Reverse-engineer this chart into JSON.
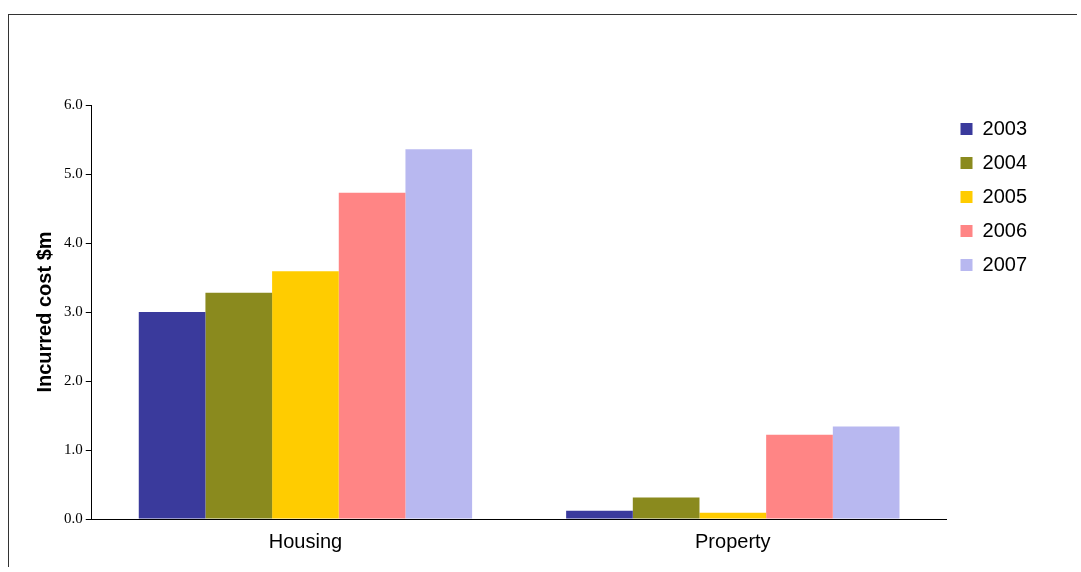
{
  "chart_data": {
    "type": "bar",
    "ylabel": "Incurred cost $m",
    "categories": [
      "Housing",
      "Property"
    ],
    "series": [
      {
        "name": "2003",
        "color": "#3a3a9c",
        "values": [
          3.0,
          0.12
        ]
      },
      {
        "name": "2004",
        "color": "#8a8a1e",
        "values": [
          3.28,
          0.31
        ]
      },
      {
        "name": "2005",
        "color": "#ffcc00",
        "values": [
          3.59,
          0.09
        ]
      },
      {
        "name": "2006",
        "color": "#ff8585",
        "values": [
          4.73,
          1.22
        ]
      },
      {
        "name": "2007",
        "color": "#b8b8f0",
        "values": [
          5.36,
          1.34
        ]
      }
    ],
    "ylim": [
      0,
      6
    ],
    "yticks": [
      {
        "value": 0,
        "label": "0.0"
      },
      {
        "value": 1,
        "label": "1.0"
      },
      {
        "value": 2,
        "label": "2.0"
      },
      {
        "value": 3,
        "label": "3.0"
      },
      {
        "value": 4,
        "label": "4.0"
      },
      {
        "value": 5,
        "label": "5.0"
      },
      {
        "value": 6,
        "label": "6.0"
      }
    ],
    "grid": false,
    "legend": "right"
  }
}
